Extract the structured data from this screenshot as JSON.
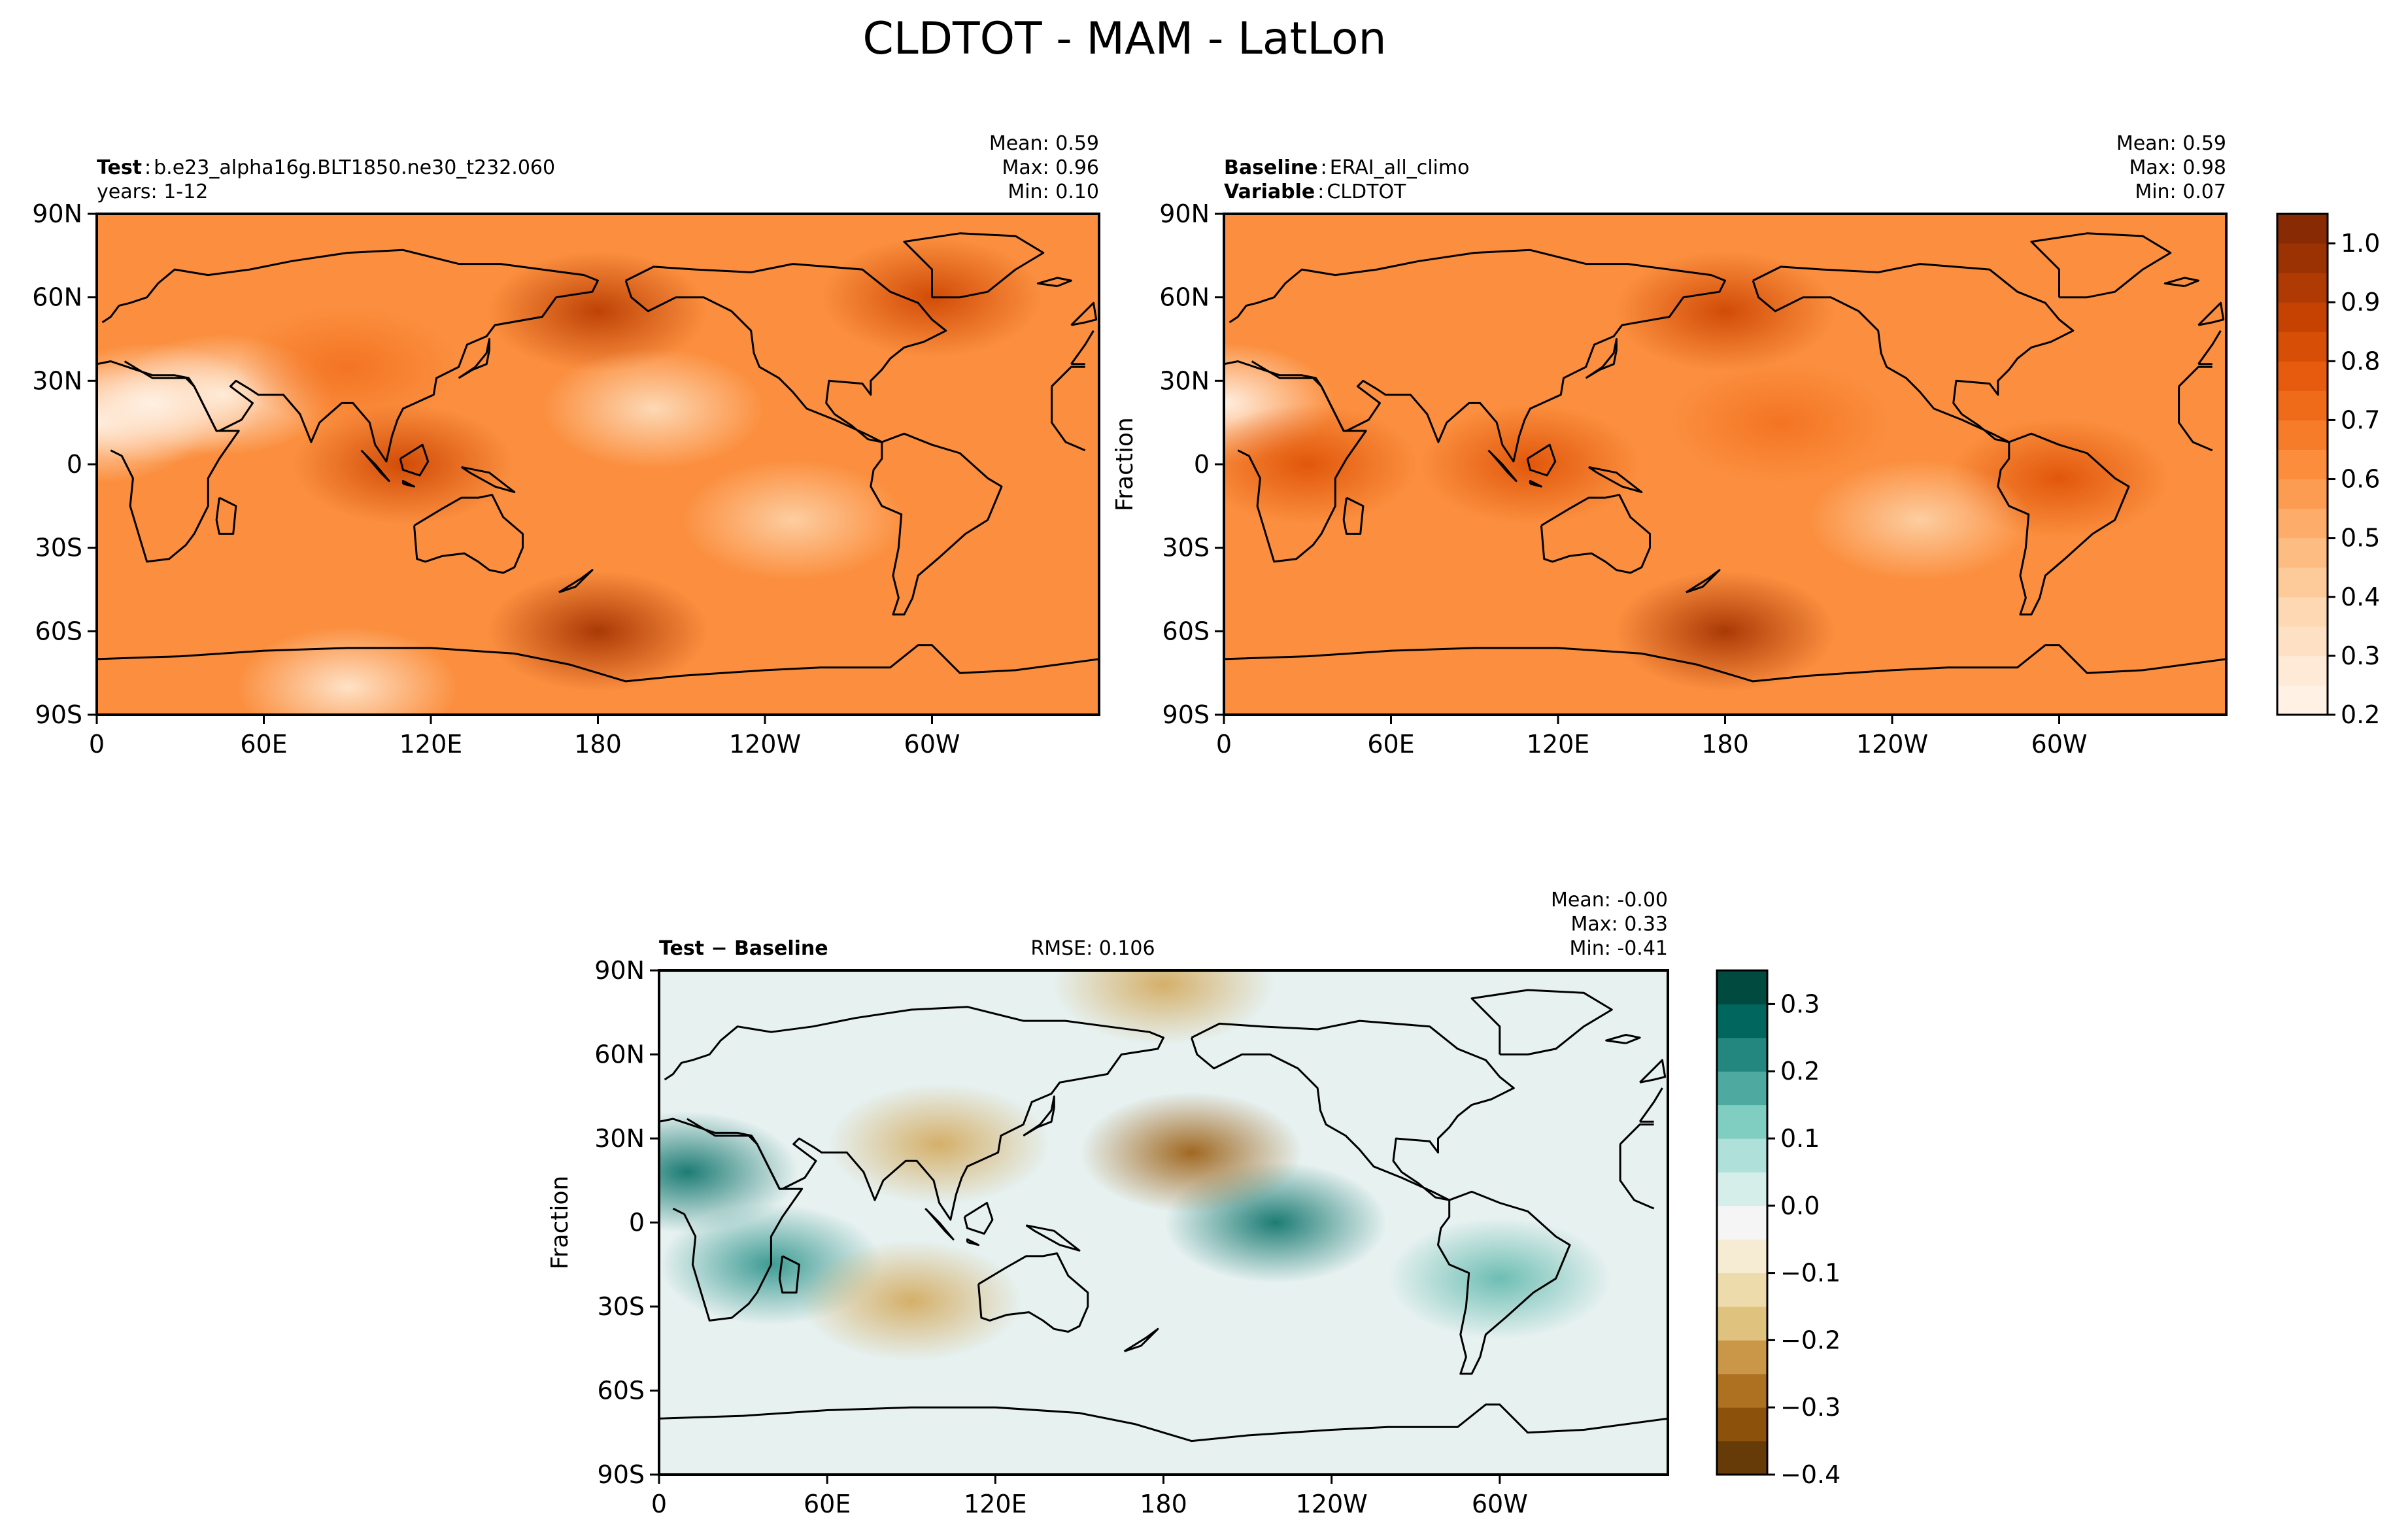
{
  "figure": {
    "title": "CLDTOT - MAM - LatLon"
  },
  "chart_data": [
    {
      "type": "heatmap",
      "panel": "test",
      "header_left": [
        {
          "label": "Test",
          "sep": ":",
          "value": "b.e23_alpha16g.BLT1850.ne30_t232.060"
        },
        {
          "label": "",
          "sep": "",
          "value": "years: 1-12"
        }
      ],
      "stats": [
        {
          "label": "Mean:",
          "value": "0.59"
        },
        {
          "label": "Max:",
          "value": "0.96"
        },
        {
          "label": "Min:",
          "value": "0.10"
        }
      ],
      "ylabel": "",
      "xticks": [
        "0",
        "60E",
        "120E",
        "180",
        "120W",
        "60W"
      ],
      "yticks": [
        "90N",
        "60N",
        "30N",
        "0",
        "30S",
        "60S",
        "90S"
      ],
      "xlim": [
        0,
        360
      ],
      "ylim": [
        -90,
        90
      ],
      "colormap": "Oranges",
      "clim": [
        0.2,
        1.05
      ],
      "field_features": [
        {
          "lon": 0,
          "lat": 15,
          "value": 0.25
        },
        {
          "lon": 20,
          "lat": 22,
          "value": 0.2
        },
        {
          "lon": 45,
          "lat": 25,
          "value": 0.25
        },
        {
          "lon": 90,
          "lat": 35,
          "value": 0.7
        },
        {
          "lon": 110,
          "lat": 0,
          "value": 0.85
        },
        {
          "lon": 180,
          "lat": 55,
          "value": 0.9
        },
        {
          "lon": 200,
          "lat": 20,
          "value": 0.35
        },
        {
          "lon": 250,
          "lat": -20,
          "value": 0.4
        },
        {
          "lon": 300,
          "lat": 60,
          "value": 0.85
        },
        {
          "lon": 180,
          "lat": -60,
          "value": 0.95
        },
        {
          "lon": 90,
          "lat": -80,
          "value": 0.3
        }
      ]
    },
    {
      "type": "heatmap",
      "panel": "baseline",
      "header_left": [
        {
          "label": "Baseline",
          "sep": ":",
          "value": "ERAI_all_climo"
        },
        {
          "label": "Variable",
          "sep": ":",
          "value": "CLDTOT"
        }
      ],
      "stats": [
        {
          "label": "Mean:",
          "value": "0.59"
        },
        {
          "label": "Max:",
          "value": "0.98"
        },
        {
          "label": "Min:",
          "value": "0.07"
        }
      ],
      "ylabel": "Fraction",
      "xticks": [
        "0",
        "60E",
        "120E",
        "180",
        "120W",
        "60W"
      ],
      "yticks": [
        "90N",
        "60N",
        "30N",
        "0",
        "30S",
        "60S",
        "90S"
      ],
      "xlim": [
        0,
        360
      ],
      "ylim": [
        -90,
        90
      ],
      "colormap": "Oranges",
      "clim": [
        0.2,
        1.05
      ],
      "colorbar": {
        "ticks": [
          "1.0",
          "0.9",
          "0.8",
          "0.7",
          "0.6",
          "0.5",
          "0.4",
          "0.3",
          "0.2"
        ],
        "tick_values": [
          1.0,
          0.9,
          0.8,
          0.7,
          0.6,
          0.5,
          0.4,
          0.3,
          0.2
        ],
        "levels": 17
      },
      "field_features": [
        {
          "lon": 0,
          "lat": 22,
          "value": 0.2
        },
        {
          "lon": 30,
          "lat": 0,
          "value": 0.8
        },
        {
          "lon": 110,
          "lat": 0,
          "value": 0.8
        },
        {
          "lon": 200,
          "lat": 15,
          "value": 0.7
        },
        {
          "lon": 300,
          "lat": -5,
          "value": 0.8
        },
        {
          "lon": 180,
          "lat": 55,
          "value": 0.85
        },
        {
          "lon": 180,
          "lat": -60,
          "value": 0.95
        },
        {
          "lon": 250,
          "lat": -20,
          "value": 0.4
        }
      ]
    },
    {
      "type": "heatmap",
      "panel": "difference",
      "header_left": [
        {
          "label": "Test − Baseline",
          "sep": "",
          "value": ""
        }
      ],
      "rmse": "RMSE: 0.106",
      "stats": [
        {
          "label": "Mean:",
          "value": "-0.00"
        },
        {
          "label": "Max:",
          "value": "0.33"
        },
        {
          "label": "Min:",
          "value": "-0.41"
        }
      ],
      "ylabel": "Fraction",
      "xticks": [
        "0",
        "60E",
        "120E",
        "180",
        "120W",
        "60W"
      ],
      "yticks": [
        "90N",
        "60N",
        "30N",
        "0",
        "30S",
        "60S",
        "90S"
      ],
      "xlim": [
        0,
        360
      ],
      "ylim": [
        -90,
        90
      ],
      "colormap": "BrBG",
      "clim": [
        -0.4,
        0.35
      ],
      "colorbar": {
        "ticks": [
          "0.3",
          "0.2",
          "0.1",
          "0.0",
          "−0.1",
          "−0.2",
          "−0.3",
          "−0.4"
        ],
        "tick_values": [
          0.3,
          0.2,
          0.1,
          0.0,
          -0.1,
          -0.2,
          -0.3,
          -0.4
        ],
        "levels": 15
      },
      "field_features": [
        {
          "lon": 10,
          "lat": 18,
          "value": 0.25
        },
        {
          "lon": 40,
          "lat": -15,
          "value": 0.2
        },
        {
          "lon": 100,
          "lat": 28,
          "value": -0.2
        },
        {
          "lon": 220,
          "lat": 0,
          "value": 0.25
        },
        {
          "lon": 190,
          "lat": 25,
          "value": -0.3
        },
        {
          "lon": 90,
          "lat": -28,
          "value": -0.2
        },
        {
          "lon": 300,
          "lat": -20,
          "value": 0.15
        },
        {
          "lon": 180,
          "lat": 85,
          "value": -0.2
        }
      ]
    }
  ]
}
